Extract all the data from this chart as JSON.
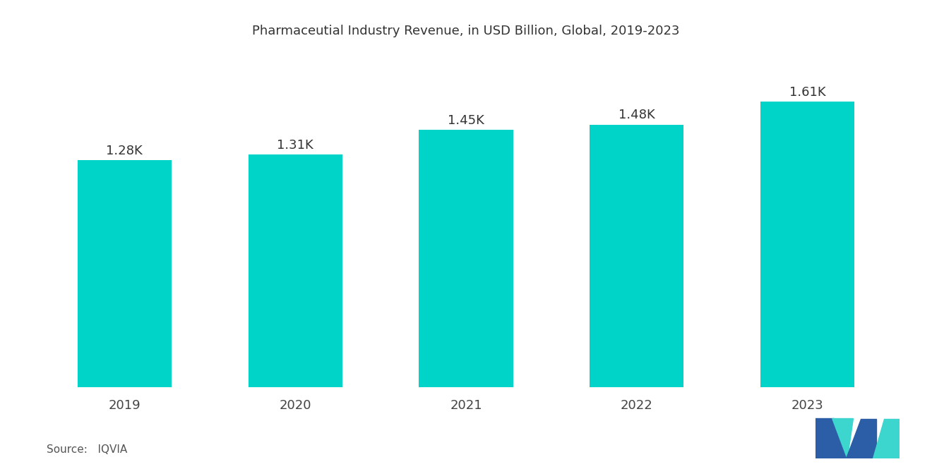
{
  "title": "Pharmaceutial Industry Revenue, in USD Billion, Global, 2019-2023",
  "categories": [
    "2019",
    "2020",
    "2021",
    "2022",
    "2023"
  ],
  "values": [
    1280,
    1310,
    1450,
    1480,
    1610
  ],
  "bar_labels": [
    "1.28K",
    "1.31K",
    "1.45K",
    "1.48K",
    "1.61K"
  ],
  "bar_color": "#00D4C8",
  "background_color": "#FFFFFF",
  "title_fontsize": 13,
  "label_fontsize": 13,
  "tick_fontsize": 13,
  "source_text": "Source:   IQVIA",
  "ylim": [
    0,
    1900
  ],
  "logo_blue": "#2B5EA7",
  "logo_teal": "#3DD6CE"
}
